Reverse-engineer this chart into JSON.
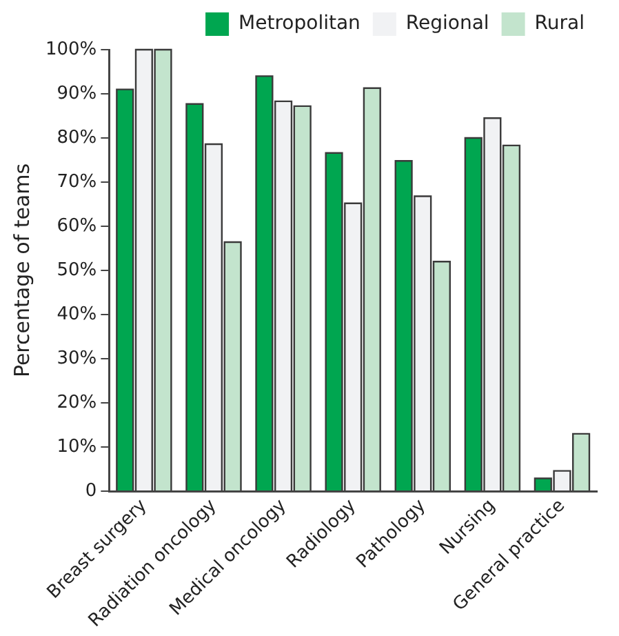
{
  "chart_data": {
    "type": "bar",
    "ylabel": "Percentage of teams",
    "categories": [
      "Breast surgery",
      "Radiation oncology",
      "Medical oncology",
      "Radiology",
      "Pathology",
      "Nursing",
      "General practice"
    ],
    "series": [
      {
        "name": "Metropolitan",
        "color": "#00a650",
        "values": [
          91,
          87.7,
          94,
          76.6,
          74.8,
          80,
          2.9
        ]
      },
      {
        "name": "Regional",
        "color": "#f1f2f4",
        "values": [
          100,
          78.6,
          88.3,
          65.2,
          66.8,
          84.5,
          4.6
        ]
      },
      {
        "name": "Rural",
        "color": "#c3e4cd",
        "values": [
          100,
          56.4,
          87.2,
          91.3,
          52,
          78.3,
          13
        ]
      }
    ],
    "ylim": [
      0,
      100
    ],
    "yticks": [
      0,
      {
        "value": 10,
        "label": "10%"
      },
      {
        "value": 20,
        "label": "20%"
      },
      {
        "value": 30,
        "label": "30%"
      },
      {
        "value": 40,
        "label": "40%"
      },
      {
        "value": 50,
        "label": "50%"
      },
      {
        "value": 60,
        "label": "60%"
      },
      {
        "value": 70,
        "label": "70%"
      },
      {
        "value": 80,
        "label": "80%"
      },
      {
        "value": 90,
        "label": "90%"
      },
      {
        "value": 100,
        "label": "100%"
      }
    ],
    "grid": false,
    "legend": "top right"
  }
}
